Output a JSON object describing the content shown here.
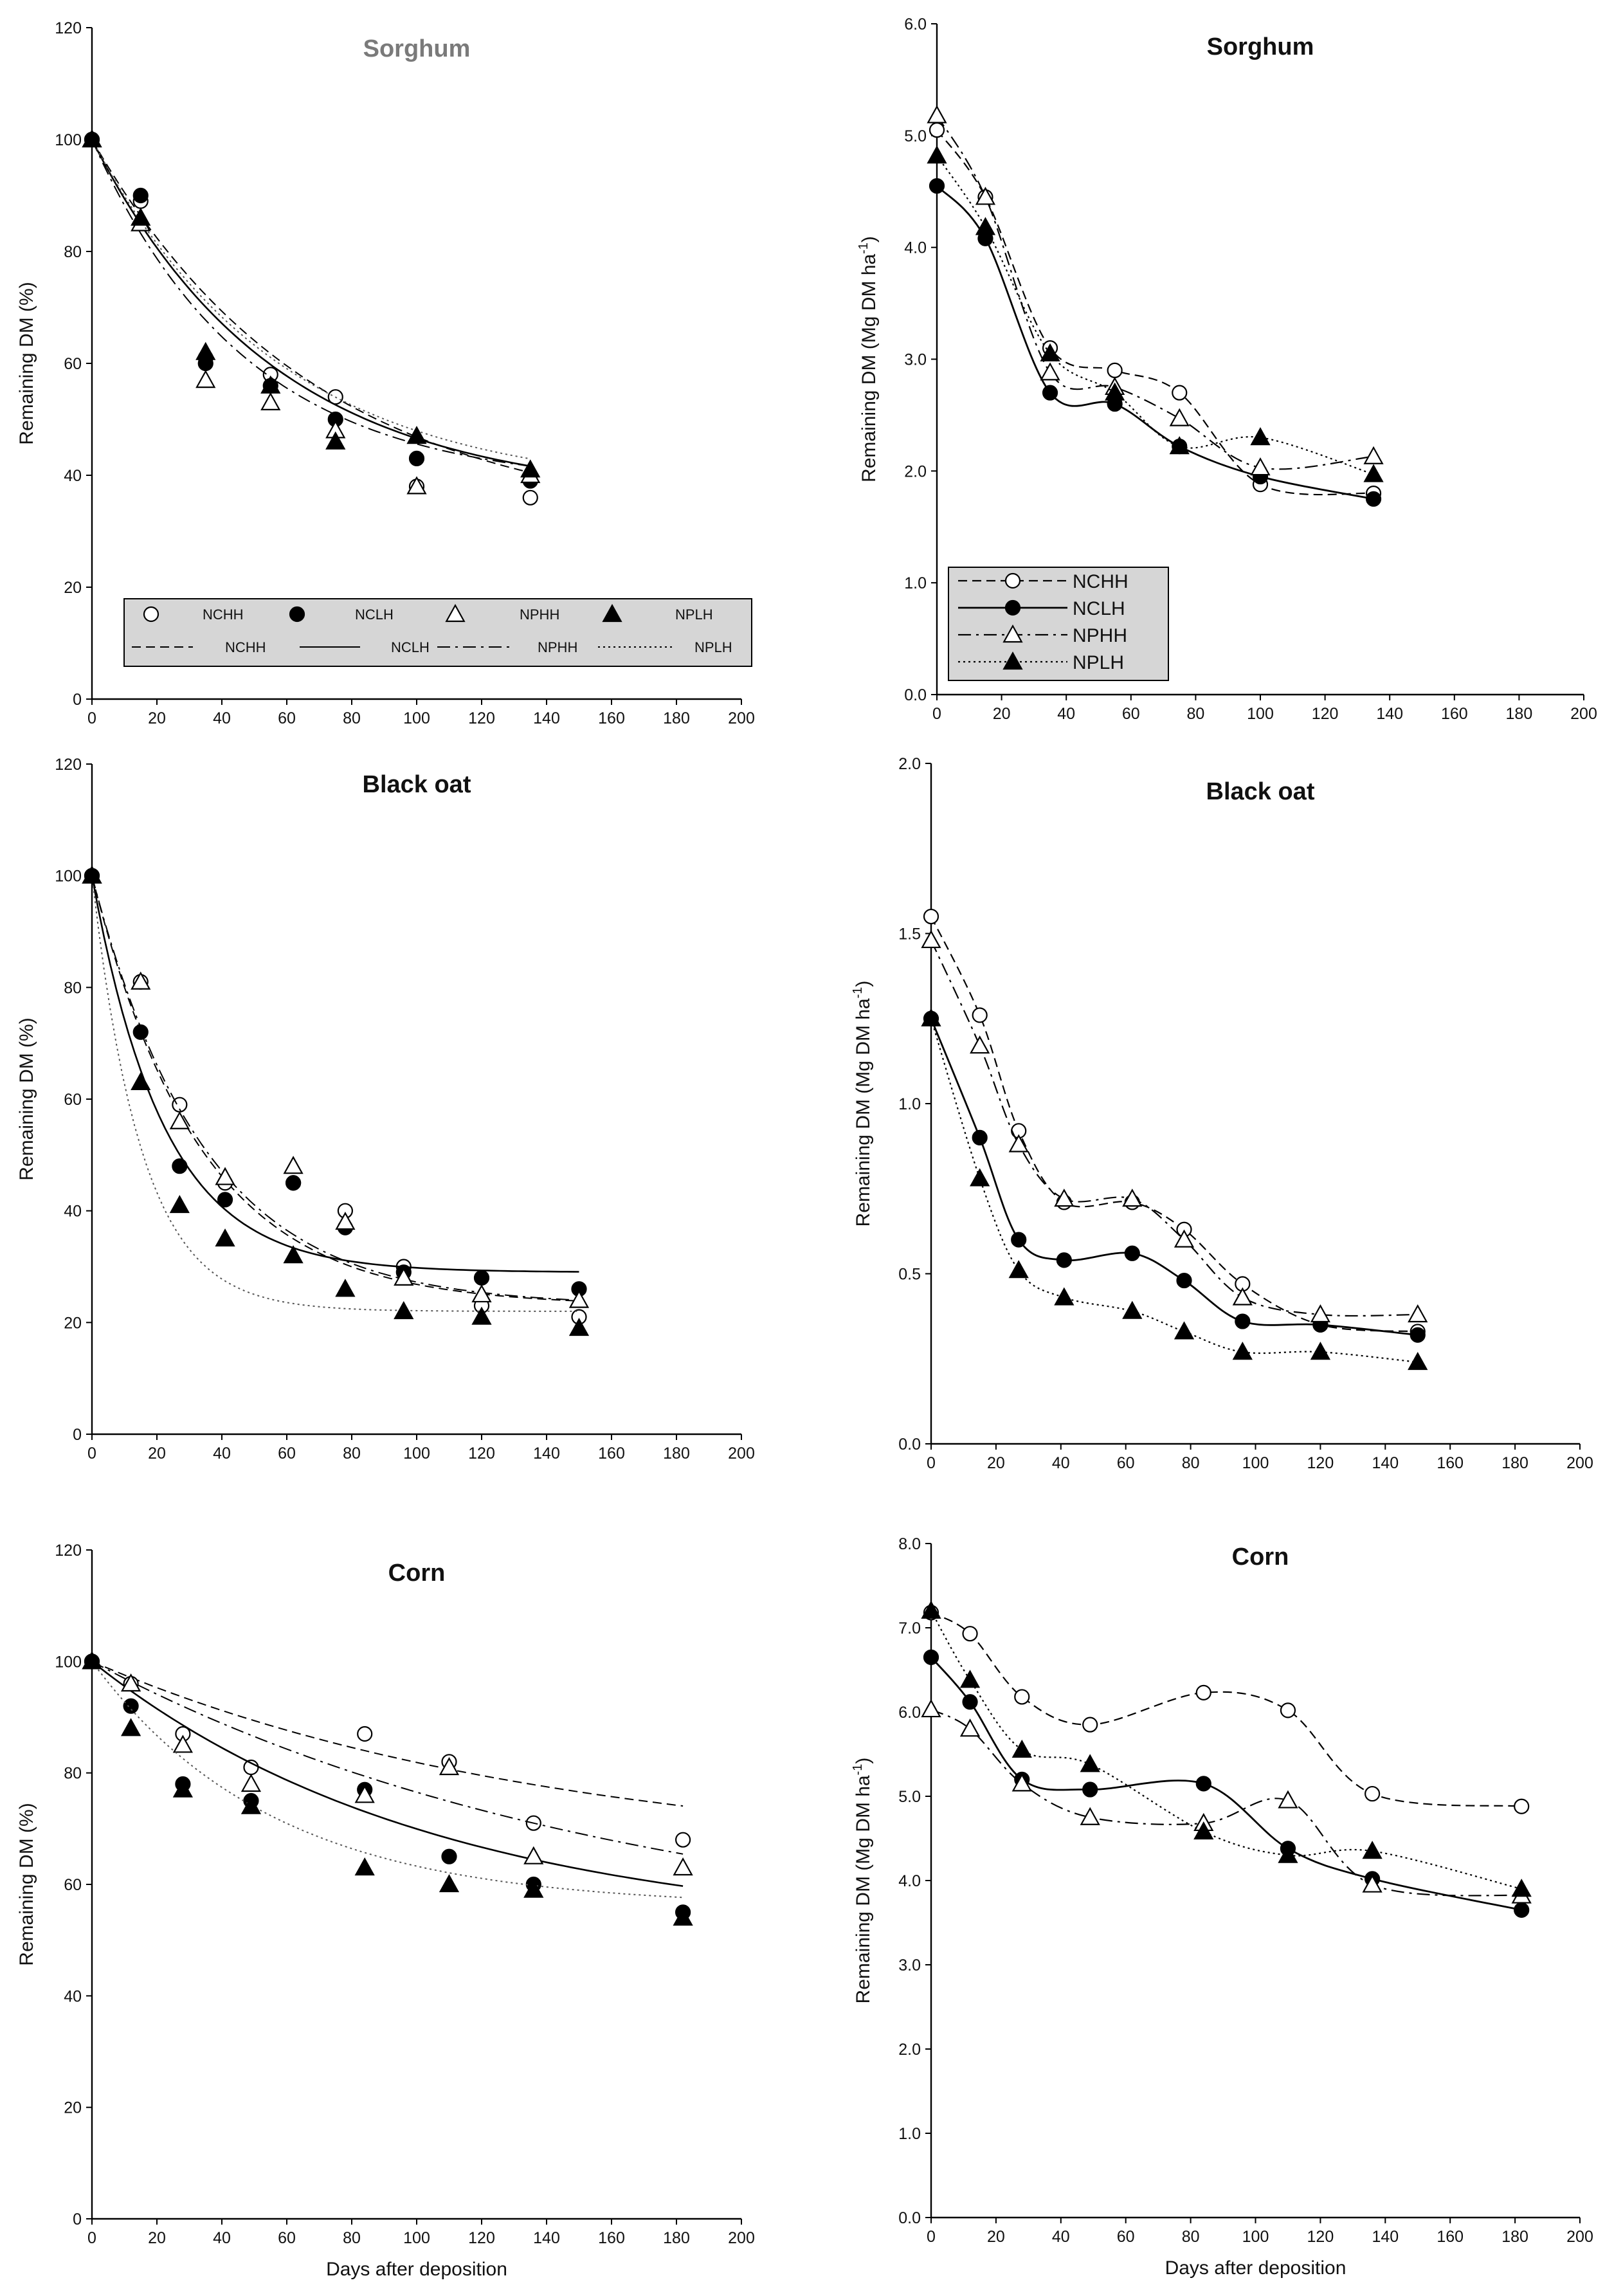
{
  "chart_data": [
    {
      "id": "sorghum_pct",
      "type": "scatter",
      "title": "Sorghum",
      "ylabel": "Remaining DM (%)",
      "xlabel": "",
      "xlim": [
        0,
        200
      ],
      "ylim": [
        0,
        120
      ],
      "xticks": [
        "0",
        "20",
        "40",
        "60",
        "80",
        "100",
        "120",
        "140",
        "160",
        "180",
        "200"
      ],
      "yticks": [
        "0",
        "20",
        "40",
        "60",
        "80",
        "100",
        "120"
      ],
      "legend": {
        "placement": "bottom",
        "markers": [
          "NCHH",
          "NCLH",
          "NPHH",
          "NPLH"
        ],
        "lines": [
          "NCHH",
          "NCLH",
          "NPHH",
          "NPLH"
        ]
      },
      "series": [
        {
          "name": "NCHH",
          "x": [
            0,
            15,
            35,
            55,
            75,
            100,
            135
          ],
          "y": [
            100,
            89,
            61,
            58,
            54,
            38,
            36
          ],
          "fit_k": 0.0147,
          "fit_a": 69
        },
        {
          "name": "NCLH",
          "x": [
            0,
            15,
            35,
            55,
            75,
            100,
            135
          ],
          "y": [
            100,
            90,
            60,
            56,
            50,
            43,
            39
          ],
          "fit_k": 0.018,
          "fit_a": 64
        },
        {
          "name": "NPHH",
          "x": [
            0,
            15,
            35,
            55,
            75,
            100,
            135
          ],
          "y": [
            100,
            85,
            57,
            53,
            48,
            38,
            40
          ],
          "fit_k": 0.021,
          "fit_a": 62
        },
        {
          "name": "NPLH",
          "x": [
            0,
            15,
            35,
            55,
            75,
            100,
            135
          ],
          "y": [
            100,
            86,
            62,
            56,
            46,
            47,
            41
          ],
          "fit_k": 0.0175,
          "fit_a": 63
        }
      ]
    },
    {
      "id": "sorghum_mg",
      "type": "line",
      "title": "Sorghum",
      "ylabel": "Remaining DM (Mg DM ha-1)",
      "ylabel_main": "Remaining DM (Mg DM ha",
      "ylabel_sup": "-1",
      "ylabel_end": ")",
      "xlabel": "",
      "xlim": [
        0,
        200
      ],
      "ylim": [
        0,
        6
      ],
      "xticks": [
        "0",
        "20",
        "40",
        "60",
        "80",
        "100",
        "120",
        "140",
        "160",
        "180",
        "200"
      ],
      "yticks": [
        "0.0",
        "1.0",
        "2.0",
        "3.0",
        "4.0",
        "5.0",
        "6.0"
      ],
      "legend": {
        "placement": "bottom-left",
        "entries": [
          "NCHH",
          "NCLH",
          "NPHH",
          "NPLH"
        ]
      },
      "series": [
        {
          "name": "NCHH",
          "x": [
            0,
            15,
            35,
            55,
            75,
            100,
            135
          ],
          "y": [
            5.05,
            4.45,
            3.1,
            2.9,
            2.7,
            1.88,
            1.8
          ]
        },
        {
          "name": "NCLH",
          "x": [
            0,
            15,
            35,
            55,
            75,
            100,
            135
          ],
          "y": [
            4.55,
            4.08,
            2.7,
            2.6,
            2.22,
            1.95,
            1.75
          ]
        },
        {
          "name": "NPHH",
          "x": [
            0,
            15,
            35,
            55,
            75,
            100,
            135
          ],
          "y": [
            5.18,
            4.45,
            2.88,
            2.75,
            2.47,
            2.03,
            2.13
          ]
        },
        {
          "name": "NPLH",
          "x": [
            0,
            15,
            35,
            55,
            75,
            100,
            135
          ],
          "y": [
            4.82,
            4.18,
            3.05,
            2.7,
            2.22,
            2.3,
            1.97
          ]
        }
      ]
    },
    {
      "id": "blackoat_pct",
      "type": "scatter",
      "title": "Black oat",
      "ylabel": "Remaining DM (%)",
      "xlabel": "",
      "xlim": [
        0,
        200
      ],
      "ylim": [
        0,
        120
      ],
      "xticks": [
        "0",
        "20",
        "40",
        "60",
        "80",
        "100",
        "120",
        "140",
        "160",
        "180",
        "200"
      ],
      "yticks": [
        "0",
        "20",
        "40",
        "60",
        "80",
        "100",
        "120"
      ],
      "series": [
        {
          "name": "NCHH",
          "x": [
            0,
            15,
            27,
            41,
            62,
            78,
            96,
            120,
            150
          ],
          "y": [
            100,
            81,
            59,
            45,
            45,
            40,
            30,
            23,
            21
          ],
          "fit_k": 0.03,
          "fit_a": 77
        },
        {
          "name": "NCLH",
          "x": [
            0,
            15,
            27,
            41,
            62,
            78,
            96,
            120,
            150
          ],
          "y": [
            100,
            72,
            48,
            42,
            45,
            37,
            29,
            28,
            26
          ],
          "fit_k": 0.045,
          "fit_a": 71
        },
        {
          "name": "NPHH",
          "x": [
            0,
            15,
            27,
            41,
            62,
            78,
            96,
            120,
            150
          ],
          "y": [
            100,
            81,
            56,
            46,
            48,
            38,
            28,
            25,
            24
          ],
          "fit_k": 0.029,
          "fit_a": 77
        },
        {
          "name": "NPLH",
          "x": [
            0,
            15,
            27,
            41,
            62,
            78,
            96,
            120,
            150
          ],
          "y": [
            100,
            63,
            41,
            35,
            32,
            26,
            22,
            21,
            19
          ],
          "fit_k": 0.065,
          "fit_a": 78
        }
      ]
    },
    {
      "id": "blackoat_mg",
      "type": "line",
      "title": "Black oat",
      "ylabel": "Remaining DM (Mg DM ha-1)",
      "ylabel_main": "Remaining DM (Mg DM ha",
      "ylabel_sup": "-1",
      "ylabel_end": ")",
      "xlabel": "",
      "xlim": [
        0,
        200
      ],
      "ylim": [
        0,
        2
      ],
      "xticks": [
        "0",
        "20",
        "40",
        "60",
        "80",
        "100",
        "120",
        "140",
        "160",
        "180",
        "200"
      ],
      "yticks": [
        "0.0",
        "0.5",
        "1.0",
        "1.5",
        "2.0"
      ],
      "series": [
        {
          "name": "NCHH",
          "x": [
            0,
            15,
            27,
            41,
            62,
            78,
            96,
            120,
            150
          ],
          "y": [
            1.55,
            1.26,
            0.92,
            0.71,
            0.71,
            0.63,
            0.47,
            0.35,
            0.33
          ]
        },
        {
          "name": "NCLH",
          "x": [
            0,
            15,
            27,
            41,
            62,
            78,
            96,
            120,
            150
          ],
          "y": [
            1.25,
            0.9,
            0.6,
            0.54,
            0.56,
            0.48,
            0.36,
            0.35,
            0.32
          ]
        },
        {
          "name": "NPHH",
          "x": [
            0,
            15,
            27,
            41,
            62,
            78,
            96,
            120,
            150
          ],
          "y": [
            1.48,
            1.17,
            0.88,
            0.72,
            0.72,
            0.6,
            0.43,
            0.38,
            0.38
          ]
        },
        {
          "name": "NPLH",
          "x": [
            0,
            15,
            27,
            41,
            62,
            78,
            96,
            120,
            150
          ],
          "y": [
            1.25,
            0.78,
            0.51,
            0.43,
            0.39,
            0.33,
            0.27,
            0.27,
            0.24
          ]
        }
      ]
    },
    {
      "id": "corn_pct",
      "type": "scatter",
      "title": "Corn",
      "ylabel": "Remaining DM (%)",
      "xlabel": "Days after deposition",
      "xlim": [
        0,
        200
      ],
      "ylim": [
        0,
        120
      ],
      "xticks": [
        "0",
        "20",
        "40",
        "60",
        "80",
        "100",
        "120",
        "140",
        "160",
        "180",
        "200"
      ],
      "yticks": [
        "0",
        "20",
        "40",
        "60",
        "80",
        "100",
        "120"
      ],
      "series": [
        {
          "name": "NCHH",
          "x": [
            0,
            12,
            28,
            49,
            84,
            110,
            136,
            182
          ],
          "y": [
            100,
            96,
            87,
            81,
            87,
            82,
            71,
            68
          ],
          "fit_k": 0.007,
          "fit_a": 36
        },
        {
          "name": "NCLH",
          "x": [
            0,
            12,
            28,
            49,
            84,
            110,
            136,
            182
          ],
          "y": [
            100,
            92,
            78,
            75,
            77,
            65,
            60,
            55
          ],
          "fit_k": 0.0095,
          "fit_a": 49
        },
        {
          "name": "NPHH",
          "x": [
            0,
            12,
            28,
            49,
            84,
            110,
            136,
            182
          ],
          "y": [
            100,
            96,
            85,
            78,
            76,
            81,
            65,
            63
          ],
          "fit_k": 0.006,
          "fit_a": 52
        },
        {
          "name": "NPLH",
          "x": [
            0,
            12,
            28,
            49,
            84,
            110,
            136,
            182
          ],
          "y": [
            100,
            88,
            77,
            74,
            63,
            60,
            59,
            54
          ],
          "fit_k": 0.018,
          "fit_a": 44
        }
      ]
    },
    {
      "id": "corn_mg",
      "type": "line",
      "title": "Corn",
      "ylabel": "Remaining DM (Mg DM ha-1)",
      "ylabel_main": "Remaining DM (Mg DM ha",
      "ylabel_sup": "-1",
      "ylabel_end": ")",
      "xlabel": "Days after deposition",
      "xlim": [
        0,
        200
      ],
      "ylim": [
        0,
        8
      ],
      "xticks": [
        "0",
        "20",
        "40",
        "60",
        "80",
        "100",
        "120",
        "140",
        "160",
        "180",
        "200"
      ],
      "yticks": [
        "0.0",
        "1.0",
        "2.0",
        "3.0",
        "4.0",
        "5.0",
        "6.0",
        "7.0",
        "8.0"
      ],
      "series": [
        {
          "name": "NCHH",
          "x": [
            0,
            12,
            28,
            49,
            84,
            110,
            136,
            182
          ],
          "y": [
            7.18,
            6.93,
            6.18,
            5.85,
            6.23,
            6.02,
            5.03,
            4.88
          ]
        },
        {
          "name": "NCLH",
          "x": [
            0,
            12,
            28,
            49,
            84,
            110,
            136,
            182
          ],
          "y": [
            6.65,
            6.12,
            5.2,
            5.08,
            5.15,
            4.38,
            4.02,
            3.65
          ]
        },
        {
          "name": "NPHH",
          "x": [
            0,
            12,
            28,
            49,
            84,
            110,
            136,
            182
          ],
          "y": [
            6.03,
            5.8,
            5.15,
            4.75,
            4.68,
            4.95,
            3.95,
            3.82
          ]
        },
        {
          "name": "NPLH",
          "x": [
            0,
            12,
            28,
            49,
            84,
            110,
            136,
            182
          ],
          "y": [
            7.2,
            6.38,
            5.55,
            5.38,
            4.58,
            4.3,
            4.35,
            3.9
          ]
        }
      ]
    }
  ],
  "colors": {
    "axis": "#000000",
    "marker_fill_open": "#ffffff",
    "marker_fill_solid": "#000000",
    "legend_bg": "#d6d6d6",
    "title_grey": "#7a7a7a"
  },
  "line_styles": {
    "NCHH": "dashed",
    "NCLH": "solid",
    "NPHH": "dash-dot",
    "NPLH": "dotted"
  },
  "marker_styles": {
    "NCHH": "open circle",
    "NCLH": "filled circle",
    "NPHH": "open triangle",
    "NPLH": "filled triangle"
  }
}
